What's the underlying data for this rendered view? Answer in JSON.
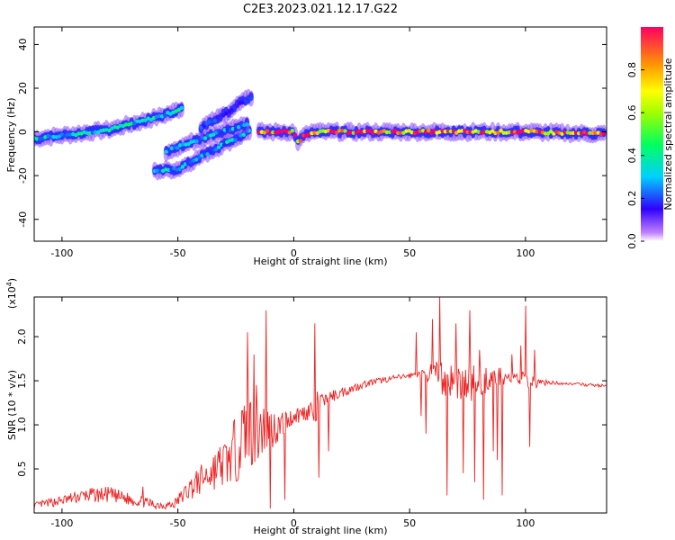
{
  "title": "C2E3.2023.021.12.17.G22",
  "chart_data": [
    {
      "type": "heatmap",
      "xlabel": "Height of straight line (km)",
      "ylabel": "Frequency (Hz)",
      "xlim": [
        -112,
        135
      ],
      "ylim": [
        -50,
        48
      ],
      "x_ticks": [
        "-100",
        "-50",
        "0",
        "50",
        "100"
      ],
      "y_ticks": [
        "40",
        "20",
        "0",
        "-20",
        "-40"
      ],
      "colorbar": {
        "label": "Normalized spectral amplitude",
        "range": [
          0.0,
          1.0
        ],
        "ticks": [
          "0.0",
          "0.2",
          "0.4",
          "0.6",
          "0.8"
        ]
      },
      "ridges": [
        {
          "x": [
            -112,
            -95,
            -80,
            -65,
            -55,
            -48
          ],
          "y": [
            -3,
            -1,
            1,
            5,
            8,
            11
          ],
          "amp": 0.35
        },
        {
          "x": [
            -60,
            -50,
            -38,
            -25,
            -18
          ],
          "y": [
            -18,
            -17,
            -10,
            -3,
            1
          ],
          "amp": 0.3
        },
        {
          "x": [
            -55,
            -45,
            -35,
            -25,
            -20
          ],
          "y": [
            -9,
            -5,
            -1,
            2,
            4
          ],
          "amp": 0.3
        },
        {
          "x": [
            -40,
            -30,
            -22,
            -18
          ],
          "y": [
            2,
            8,
            14,
            16
          ],
          "amp": 0.2
        },
        {
          "x": [
            -15,
            0,
            2,
            4,
            8,
            100,
            135
          ],
          "y": [
            0,
            0,
            -5,
            -2,
            0,
            0,
            -1
          ],
          "amp": 0.9
        }
      ]
    },
    {
      "type": "line",
      "xlabel": "Height of straight line (km)",
      "ylabel": "SNR (10 * v/v)",
      "y_multiplier": "(x10",
      "y_multiplier_exp": "4",
      "y_multiplier_close": ")",
      "xlim": [
        -112,
        135
      ],
      "ylim": [
        0,
        2.45
      ],
      "x_ticks": [
        "-100",
        "-50",
        "0",
        "50",
        "100"
      ],
      "y_ticks": [
        "0.5",
        "1.0",
        "1.5",
        "2.0"
      ],
      "color": "#ee2222",
      "series": [
        {
          "envelope": [
            [
              -112,
              0.05,
              0.12
            ],
            [
              -100,
              0.08,
              0.2
            ],
            [
              -90,
              0.12,
              0.28
            ],
            [
              -80,
              0.12,
              0.3
            ],
            [
              -70,
              0.08,
              0.22
            ],
            [
              -60,
              0.04,
              0.15
            ],
            [
              -52,
              0.04,
              0.14
            ],
            [
              -45,
              0.15,
              0.4
            ],
            [
              -35,
              0.25,
              0.7
            ],
            [
              -28,
              0.3,
              0.9
            ],
            [
              -22,
              0.4,
              1.3
            ],
            [
              -18,
              0.5,
              1.5
            ],
            [
              -14,
              0.55,
              1.4
            ],
            [
              -10,
              0.7,
              1.2
            ],
            [
              -5,
              0.85,
              1.15
            ],
            [
              0,
              1.0,
              1.2
            ],
            [
              6,
              1.05,
              1.25
            ],
            [
              9,
              0.9,
              1.4
            ],
            [
              12,
              1.2,
              1.35
            ],
            [
              20,
              1.3,
              1.42
            ],
            [
              30,
              1.42,
              1.5
            ],
            [
              40,
              1.48,
              1.55
            ],
            [
              48,
              1.52,
              1.58
            ],
            [
              55,
              1.55,
              1.62
            ],
            [
              60,
              1.45,
              1.7
            ],
            [
              65,
              1.3,
              1.75
            ],
            [
              70,
              1.3,
              1.7
            ],
            [
              75,
              1.2,
              1.7
            ],
            [
              80,
              1.3,
              1.7
            ],
            [
              85,
              1.4,
              1.65
            ],
            [
              90,
              1.45,
              1.65
            ],
            [
              95,
              1.45,
              1.6
            ],
            [
              100,
              1.4,
              1.6
            ],
            [
              104,
              1.4,
              1.55
            ],
            [
              110,
              1.46,
              1.5
            ],
            [
              120,
              1.45,
              1.48
            ],
            [
              135,
              1.42,
              1.46
            ]
          ],
          "spikes": [
            [
              -65,
              0.3
            ],
            [
              -20,
              2.05
            ],
            [
              -17,
              1.8
            ],
            [
              -12,
              2.3
            ],
            [
              -10,
              0.05
            ],
            [
              -4,
              0.15
            ],
            [
              9,
              2.15
            ],
            [
              11,
              0.4
            ],
            [
              15,
              0.7
            ],
            [
              53,
              2.05
            ],
            [
              55,
              1.1
            ],
            [
              57,
              0.9
            ],
            [
              60,
              2.2
            ],
            [
              63,
              2.45
            ],
            [
              66,
              0.2
            ],
            [
              70,
              2.15
            ],
            [
              73,
              0.45
            ],
            [
              76,
              2.3
            ],
            [
              78,
              0.35
            ],
            [
              80,
              1.85
            ],
            [
              82,
              0.15
            ],
            [
              86,
              0.7
            ],
            [
              88,
              0.6
            ],
            [
              90,
              0.2
            ],
            [
              94,
              1.8
            ],
            [
              98,
              1.9
            ],
            [
              100,
              2.35
            ],
            [
              102,
              0.75
            ],
            [
              104,
              1.85
            ]
          ]
        }
      ]
    }
  ]
}
